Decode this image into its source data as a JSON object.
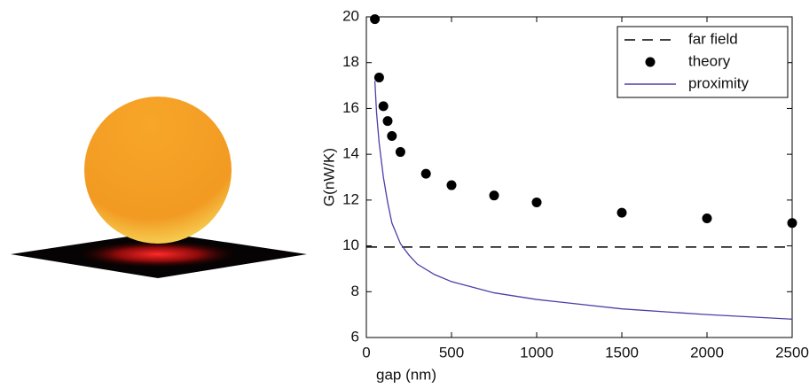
{
  "chart_data": {
    "type": "line",
    "xlabel": "gap (nm)",
    "ylabel": "G(nW/K)",
    "xlim": [
      0,
      2500
    ],
    "ylim": [
      6,
      20
    ],
    "xticks": [
      0,
      500,
      1000,
      1500,
      2000,
      2500
    ],
    "yticks": [
      6,
      8,
      10,
      12,
      14,
      16,
      18,
      20
    ],
    "legend": "upper right",
    "series": [
      {
        "name": "far field",
        "color": "#000000",
        "style": "dashed",
        "x": [
          0,
          2500
        ],
        "values": [
          9.95,
          9.95
        ]
      },
      {
        "name": "theory",
        "color": "#000000",
        "style": "marker",
        "x": [
          50,
          75,
          100,
          125,
          150,
          200,
          350,
          500,
          750,
          1000,
          1500,
          2000,
          2500
        ],
        "values": [
          19.9,
          17.35,
          16.1,
          15.45,
          14.8,
          14.1,
          13.15,
          12.65,
          12.2,
          11.9,
          11.45,
          11.2,
          11.0
        ]
      },
      {
        "name": "proximity",
        "color": "#4a3fa8",
        "style": "solid",
        "x": [
          50,
          60,
          75,
          100,
          125,
          150,
          200,
          250,
          300,
          400,
          500,
          750,
          1000,
          1500,
          2000,
          2500
        ],
        "values": [
          17.2,
          15.8,
          14.5,
          13.0,
          11.9,
          11.0,
          10.1,
          9.6,
          9.2,
          8.75,
          8.44,
          7.95,
          7.66,
          7.25,
          7.0,
          6.8
        ]
      }
    ]
  }
}
